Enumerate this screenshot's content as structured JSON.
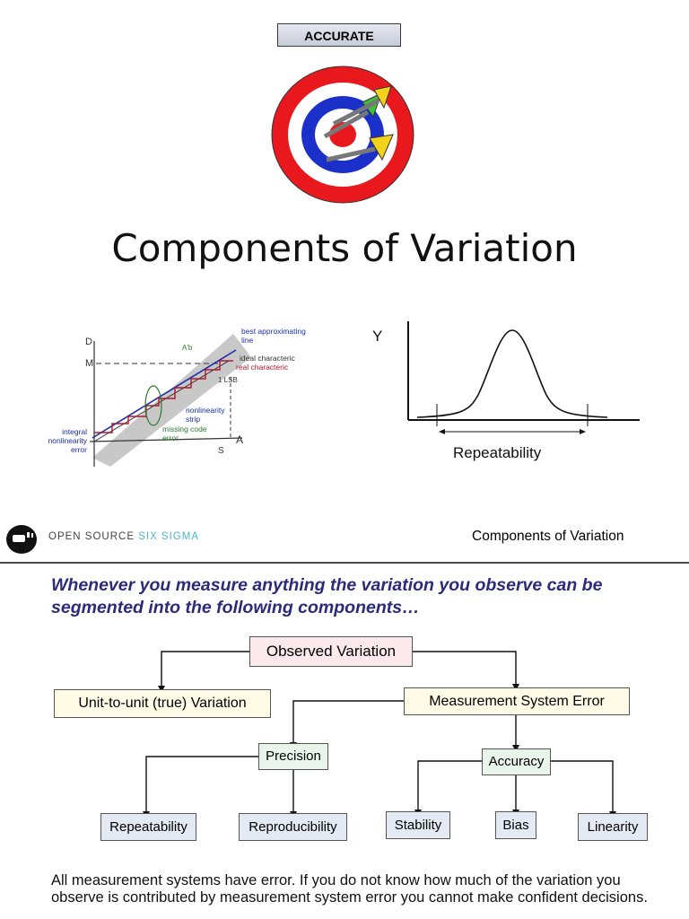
{
  "badge": {
    "label": "ACCURATE"
  },
  "title": "Components of Variation",
  "linearity_figure": {
    "labels": {
      "best_fit": "best approximating",
      "best_fit_2": "line",
      "ideal": "ideal characteric",
      "real": "real characteric",
      "nonlinearity_strip": "nonlinearity",
      "nonlinearity_strip_2": "strip",
      "missing_code": "missing code",
      "missing_code_2": "error",
      "integral": "integral",
      "integral_2": "nonlinearity",
      "integral_3": "error",
      "axis_d": "D",
      "axis_m": "M",
      "axis_a": "A",
      "axis_s": "S",
      "lsb": "1 LSB",
      "delta": "A'b"
    }
  },
  "curve_figure": {
    "y_label": "Y",
    "x_label": "Repeatability"
  },
  "footer": {
    "brand_main": "OPEN SOURCE",
    "brand_accent": "SIX SIGMA",
    "section": "Components of Variation"
  },
  "intro": "Whenever you measure anything the variation you observe can be segmented into the following components…",
  "tree": {
    "observed": "Observed Variation",
    "unit": "Unit-to-unit (true) Variation",
    "mse": "Measurement System Error",
    "precision": "Precision",
    "accuracy": "Accuracy",
    "repeatability": "Repeatability",
    "reproducibility": "Reproducibility",
    "stability": "Stability",
    "bias": "Bias",
    "linearity": "Linearity"
  },
  "bottom": "All measurement systems have error.  If you do not know how much of the variation you observe is contributed by measurement system error you cannot make confident decisions."
}
